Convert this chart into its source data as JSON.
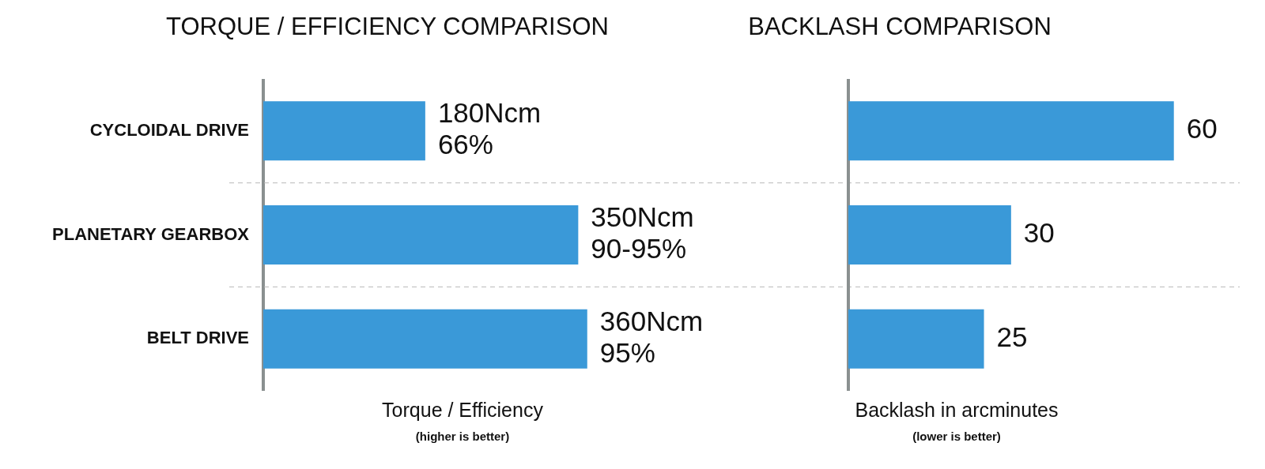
{
  "chart_data": [
    {
      "type": "bar",
      "title": "TORQUE / EFFICIENCY COMPARISON",
      "orientation": "horizontal",
      "categories": [
        "CYCLOIDAL DRIVE",
        "PLANETARY GEARBOX",
        "BELT DRIVE"
      ],
      "values": [
        180,
        350,
        360
      ],
      "value_labels": [
        "180Ncm\n66%",
        "350Ncm\n90-95%",
        "360Ncm\n95%"
      ],
      "color": "#3a99d8",
      "xlabel": "Torque / Efficiency",
      "annotations": [
        "(higher is better)"
      ],
      "grid": "y",
      "tick_labels": "y",
      "legend": false
    },
    {
      "type": "bar",
      "title": "BACKLASH COMPARISON",
      "orientation": "horizontal",
      "categories": [
        null,
        null,
        null
      ],
      "values": [
        60,
        30,
        25
      ],
      "data_labels": true,
      "color": "#3a99d8",
      "xlabel": "Backlash in arcminutes",
      "annotations": [
        "(lower is better)"
      ],
      "tick_labels": false,
      "legend": false
    }
  ]
}
